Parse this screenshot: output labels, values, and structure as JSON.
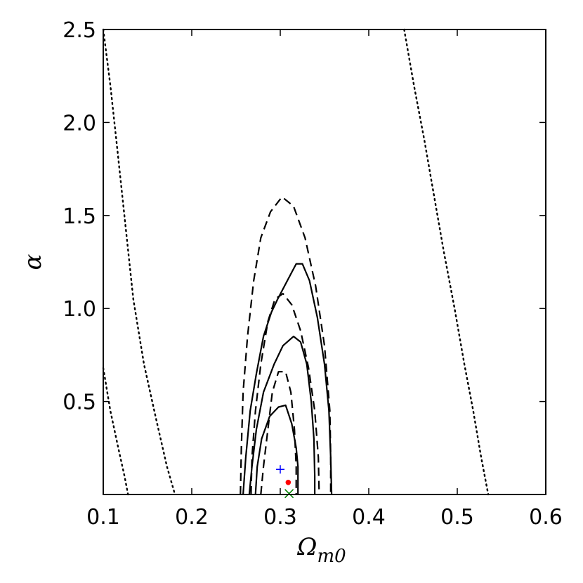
{
  "chart_data": {
    "type": "contour",
    "xlabel": "Ω",
    "xlabel_sub": "m0",
    "ylabel": "α",
    "xlim": [
      0.1,
      0.6
    ],
    "ylim": [
      0.0,
      2.5
    ],
    "xticks": [
      0.1,
      0.2,
      0.3,
      0.4,
      0.5,
      0.6
    ],
    "xtick_labels": [
      "0.1",
      "0.2",
      "0.3",
      "0.4",
      "0.5",
      "0.6"
    ],
    "yticks": [
      0.5,
      1.0,
      1.5,
      2.0,
      2.5
    ],
    "ytick_labels": [
      "0.5",
      "1.0",
      "1.5",
      "2.0",
      "2.5"
    ],
    "grid": false,
    "colors": {
      "contour": "#000000",
      "plus_marker": "#0000ff",
      "dot_marker": "#ff0000",
      "x_marker": "#008000"
    },
    "series": [
      {
        "style": "solid",
        "points": [
          [
            0.272,
            0.0
          ],
          [
            0.274,
            0.15
          ],
          [
            0.279,
            0.3
          ],
          [
            0.288,
            0.42
          ],
          [
            0.298,
            0.47
          ],
          [
            0.306,
            0.48
          ],
          [
            0.313,
            0.38
          ],
          [
            0.318,
            0.25
          ],
          [
            0.32,
            0.15
          ],
          [
            0.32,
            0.0
          ]
        ]
      },
      {
        "style": "solid",
        "points": [
          [
            0.265,
            0.0
          ],
          [
            0.268,
            0.15
          ],
          [
            0.273,
            0.35
          ],
          [
            0.281,
            0.55
          ],
          [
            0.293,
            0.7
          ],
          [
            0.303,
            0.8
          ],
          [
            0.315,
            0.85
          ],
          [
            0.323,
            0.82
          ],
          [
            0.33,
            0.7
          ],
          [
            0.335,
            0.5
          ],
          [
            0.338,
            0.3
          ],
          [
            0.339,
            0.1
          ],
          [
            0.339,
            0.0
          ]
        ]
      },
      {
        "style": "solid",
        "points": [
          [
            0.258,
            0.0
          ],
          [
            0.261,
            0.2
          ],
          [
            0.266,
            0.45
          ],
          [
            0.273,
            0.65
          ],
          [
            0.281,
            0.85
          ],
          [
            0.29,
            0.98
          ],
          [
            0.297,
            1.05
          ],
          [
            0.308,
            1.15
          ],
          [
            0.318,
            1.24
          ],
          [
            0.325,
            1.24
          ],
          [
            0.333,
            1.15
          ],
          [
            0.342,
            0.95
          ],
          [
            0.35,
            0.7
          ],
          [
            0.355,
            0.45
          ],
          [
            0.357,
            0.2
          ],
          [
            0.358,
            0.0
          ]
        ]
      },
      {
        "style": "dashed",
        "points": [
          [
            0.278,
            0.0
          ],
          [
            0.281,
            0.15
          ],
          [
            0.286,
            0.35
          ],
          [
            0.291,
            0.55
          ],
          [
            0.298,
            0.66
          ],
          [
            0.306,
            0.66
          ],
          [
            0.312,
            0.55
          ],
          [
            0.316,
            0.35
          ],
          [
            0.318,
            0.15
          ],
          [
            0.318,
            0.0
          ]
        ]
      },
      {
        "style": "dashed",
        "points": [
          [
            0.267,
            0.0
          ],
          [
            0.268,
            0.2
          ],
          [
            0.272,
            0.45
          ],
          [
            0.278,
            0.7
          ],
          [
            0.286,
            0.93
          ],
          [
            0.294,
            1.05
          ],
          [
            0.303,
            1.08
          ],
          [
            0.313,
            1.02
          ],
          [
            0.323,
            0.88
          ],
          [
            0.332,
            0.68
          ],
          [
            0.339,
            0.45
          ],
          [
            0.343,
            0.2
          ],
          [
            0.344,
            0.0
          ]
        ]
      },
      {
        "style": "dashed",
        "points": [
          [
            0.255,
            0.0
          ],
          [
            0.256,
            0.25
          ],
          [
            0.258,
            0.55
          ],
          [
            0.263,
            0.85
          ],
          [
            0.27,
            1.15
          ],
          [
            0.278,
            1.38
          ],
          [
            0.289,
            1.52
          ],
          [
            0.302,
            1.6
          ],
          [
            0.315,
            1.55
          ],
          [
            0.328,
            1.38
          ],
          [
            0.34,
            1.12
          ],
          [
            0.35,
            0.8
          ],
          [
            0.356,
            0.45
          ],
          [
            0.357,
            0.2
          ],
          [
            0.357,
            0.0
          ]
        ]
      },
      {
        "style": "dotted",
        "points": [
          [
            0.1,
            2.5
          ],
          [
            0.108,
            2.2
          ],
          [
            0.116,
            1.85
          ],
          [
            0.125,
            1.45
          ],
          [
            0.134,
            1.05
          ],
          [
            0.146,
            0.7
          ],
          [
            0.16,
            0.4
          ],
          [
            0.172,
            0.15
          ],
          [
            0.181,
            0.0
          ]
        ]
      },
      {
        "style": "dotted",
        "points": [
          [
            0.1,
            0.68
          ],
          [
            0.108,
            0.45
          ],
          [
            0.117,
            0.25
          ],
          [
            0.124,
            0.1
          ],
          [
            0.128,
            0.0
          ]
        ]
      },
      {
        "style": "dotted",
        "points": [
          [
            0.44,
            2.5
          ],
          [
            0.451,
            2.2
          ],
          [
            0.463,
            1.9
          ],
          [
            0.474,
            1.6
          ],
          [
            0.485,
            1.3
          ],
          [
            0.497,
            1.0
          ],
          [
            0.508,
            0.7
          ],
          [
            0.518,
            0.45
          ],
          [
            0.527,
            0.2
          ],
          [
            0.535,
            0.0
          ]
        ]
      }
    ],
    "markers": [
      {
        "type": "plus",
        "x": 0.3,
        "y": 0.135,
        "color": "#0000ff"
      },
      {
        "type": "dot",
        "x": 0.309,
        "y": 0.065,
        "color": "#ff0000"
      },
      {
        "type": "x",
        "x": 0.31,
        "y": 0.005,
        "color": "#008000"
      }
    ]
  }
}
